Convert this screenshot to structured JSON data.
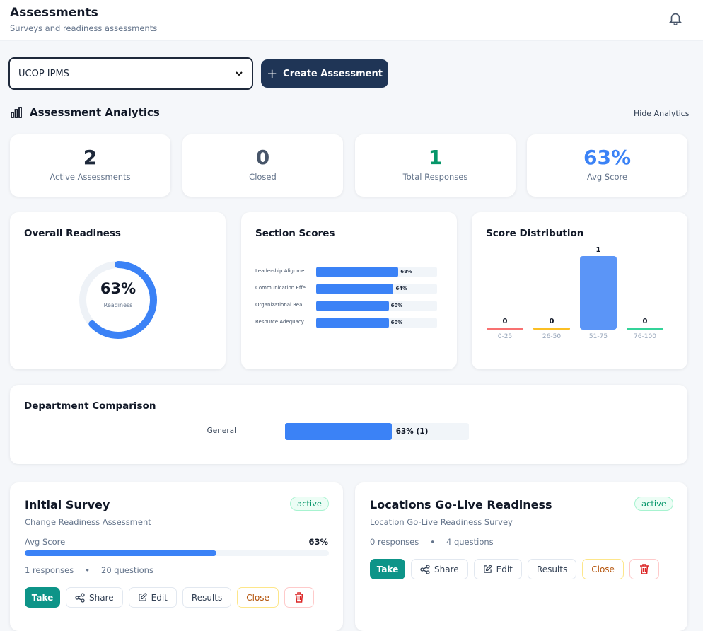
{
  "header": {
    "title": "Assessments",
    "subtitle": "Surveys and readiness assessments"
  },
  "toolbar": {
    "selected_project": "UCOP IPMS",
    "create_label": "Create Assessment"
  },
  "analytics": {
    "title": "Assessment Analytics",
    "hide_label": "Hide Analytics",
    "stats": [
      {
        "value": "2",
        "label": "Active Assessments",
        "color": "#1e293b"
      },
      {
        "value": "0",
        "label": "Closed",
        "color": "#475569"
      },
      {
        "value": "1",
        "label": "Total Responses",
        "color": "#059669"
      },
      {
        "value": "63%",
        "label": "Avg Score",
        "color": "#3b82f6"
      }
    ]
  },
  "chart_data": [
    {
      "type": "pie",
      "title": "Overall Readiness",
      "value": 63,
      "center_label": "63%",
      "center_sub": "Readiness"
    },
    {
      "type": "bar",
      "title": "Section Scores",
      "orientation": "horizontal",
      "categories": [
        "Leadership Alignme...",
        "Communication Effe...",
        "Organizational Rea...",
        "Resource Adequacy"
      ],
      "values": [
        68,
        64,
        60,
        60
      ],
      "labels": [
        "68%",
        "64%",
        "60%",
        "60%"
      ],
      "xlim": [
        0,
        100
      ]
    },
    {
      "type": "bar",
      "title": "Score Distribution",
      "categories": [
        "0-25",
        "26-50",
        "51-75",
        "76-100"
      ],
      "values": [
        0,
        0,
        1,
        0
      ],
      "colors": [
        "#f87171",
        "#fbbf24",
        "#5b95f7",
        "#34d399"
      ]
    },
    {
      "type": "bar",
      "title": "Department Comparison",
      "orientation": "horizontal",
      "categories": [
        "General"
      ],
      "values": [
        63
      ],
      "labels": [
        "63% (1)"
      ],
      "xlim": [
        0,
        100
      ]
    }
  ],
  "assessments": [
    {
      "title": "Initial Survey",
      "status": "active",
      "subtitle": "Change Readiness Assessment",
      "avg_label": "Avg Score",
      "avg_value": "63%",
      "avg_pct": 63,
      "responses": "1 responses",
      "questions": "20 questions"
    },
    {
      "title": "Locations Go-Live Readiness",
      "status": "active",
      "subtitle": "Location Go-Live Readiness Survey",
      "responses": "0 responses",
      "questions": "4 questions"
    }
  ],
  "actions": {
    "take": "Take",
    "share": "Share",
    "edit": "Edit",
    "results": "Results",
    "close": "Close",
    "dot": "•"
  }
}
